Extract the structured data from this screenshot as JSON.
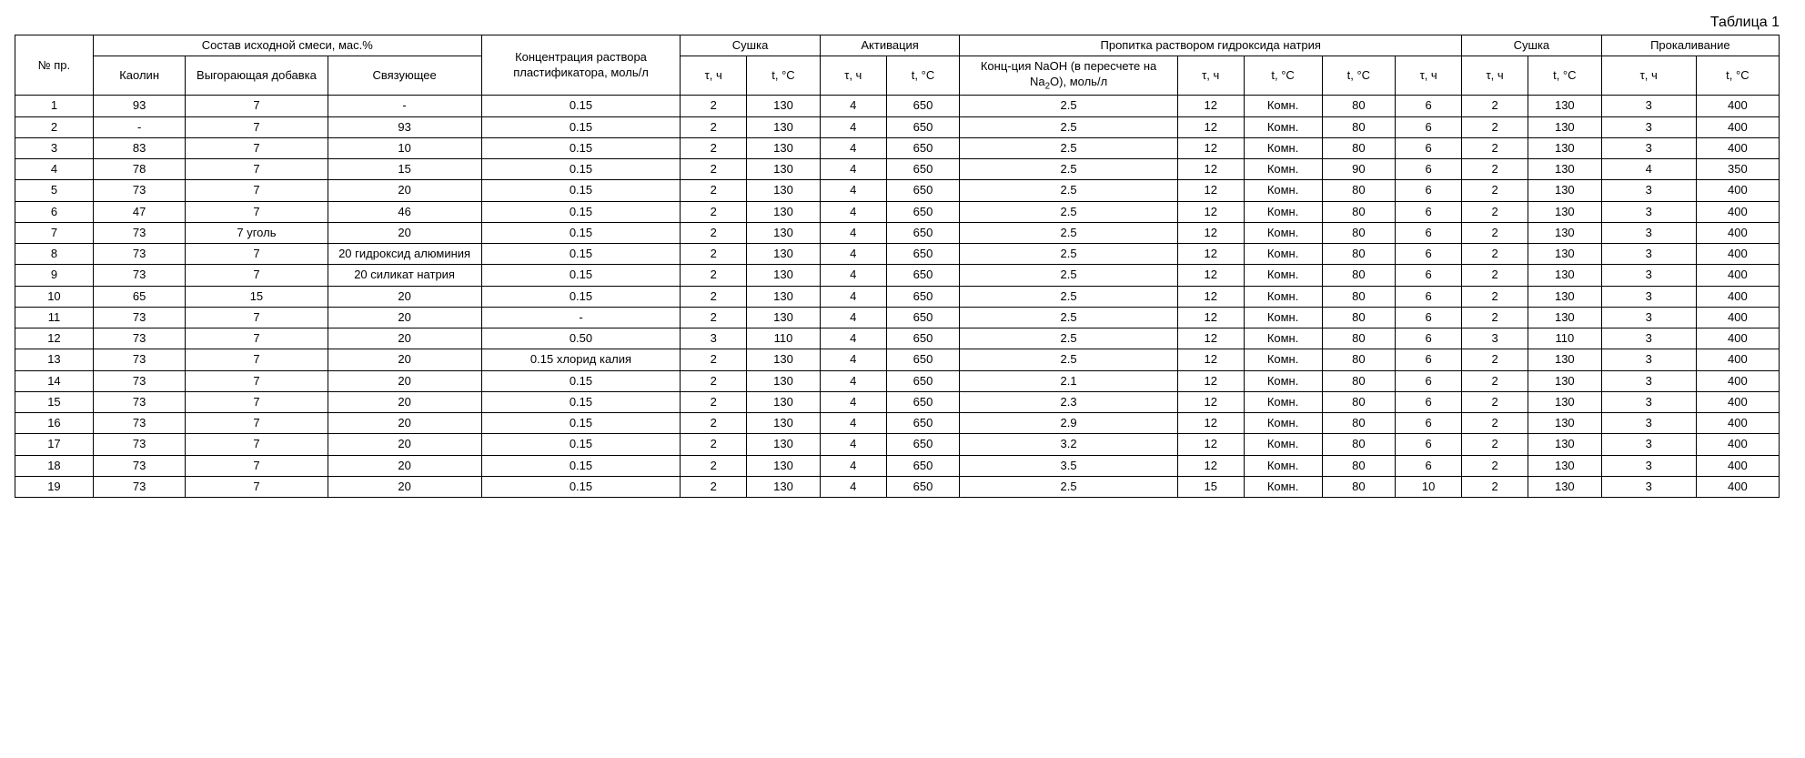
{
  "caption": "Таблица 1",
  "header": {
    "row1": [
      "№ пр.",
      "Состав исходной смеси, мас.%",
      "Концентрация раствора пластификатора, моль/л",
      "Сушка",
      "Активация",
      "Пропитка раствором гидроксида натрия",
      "Сушка",
      "Прокаливание"
    ],
    "row2_comp": [
      "Каолин",
      "Выгорающая добавка",
      "Связующее"
    ],
    "row2_dry1": [
      "τ, ч",
      "t, °C"
    ],
    "row2_act": [
      "τ, ч",
      "t, °C"
    ],
    "row2_imp": [
      "Конц-ция NaOH (в пересчете на Na₂O), моль/л",
      "τ, ч",
      "t, °C",
      "t, °C",
      "τ, ч"
    ],
    "row2_dry2": [
      "τ, ч",
      "t, °C"
    ],
    "row2_calc": [
      "τ, ч",
      "t, °C"
    ]
  },
  "colwidths": {
    "npr": 66,
    "kaolin": 78,
    "burn": 120,
    "binder": 130,
    "conc": 168,
    "d1a": 56,
    "d1b": 62,
    "aa": 56,
    "ab": 62,
    "ia": 184,
    "ib": 56,
    "ic": 66,
    "id": 62,
    "ie": 56,
    "d2a": 56,
    "d2b": 62,
    "ca": 80,
    "cb": 70
  },
  "rows": [
    [
      "1",
      "93",
      "7",
      "-",
      "0.15",
      "2",
      "130",
      "4",
      "650",
      "2.5",
      "12",
      "Комн.",
      "80",
      "6",
      "2",
      "130",
      "3",
      "400"
    ],
    [
      "2",
      "-",
      "7",
      "93",
      "0.15",
      "2",
      "130",
      "4",
      "650",
      "2.5",
      "12",
      "Комн.",
      "80",
      "6",
      "2",
      "130",
      "3",
      "400"
    ],
    [
      "3",
      "83",
      "7",
      "10",
      "0.15",
      "2",
      "130",
      "4",
      "650",
      "2.5",
      "12",
      "Комн.",
      "80",
      "6",
      "2",
      "130",
      "3",
      "400"
    ],
    [
      "4",
      "78",
      "7",
      "15",
      "0.15",
      "2",
      "130",
      "4",
      "650",
      "2.5",
      "12",
      "Комн.",
      "90",
      "6",
      "2",
      "130",
      "4",
      "350"
    ],
    [
      "5",
      "73",
      "7",
      "20",
      "0.15",
      "2",
      "130",
      "4",
      "650",
      "2.5",
      "12",
      "Комн.",
      "80",
      "6",
      "2",
      "130",
      "3",
      "400"
    ],
    [
      "6",
      "47",
      "7",
      "46",
      "0.15",
      "2",
      "130",
      "4",
      "650",
      "2.5",
      "12",
      "Комн.",
      "80",
      "6",
      "2",
      "130",
      "3",
      "400"
    ],
    [
      "7",
      "73",
      "7 уголь",
      "20",
      "0.15",
      "2",
      "130",
      "4",
      "650",
      "2.5",
      "12",
      "Комн.",
      "80",
      "6",
      "2",
      "130",
      "3",
      "400"
    ],
    [
      "8",
      "73",
      "7",
      "20 гидроксид алюминия",
      "0.15",
      "2",
      "130",
      "4",
      "650",
      "2.5",
      "12",
      "Комн.",
      "80",
      "6",
      "2",
      "130",
      "3",
      "400"
    ],
    [
      "9",
      "73",
      "7",
      "20 силикат натрия",
      "0.15",
      "2",
      "130",
      "4",
      "650",
      "2.5",
      "12",
      "Комн.",
      "80",
      "6",
      "2",
      "130",
      "3",
      "400"
    ],
    [
      "10",
      "65",
      "15",
      "20",
      "0.15",
      "2",
      "130",
      "4",
      "650",
      "2.5",
      "12",
      "Комн.",
      "80",
      "6",
      "2",
      "130",
      "3",
      "400"
    ],
    [
      "11",
      "73",
      "7",
      "20",
      "-",
      "2",
      "130",
      "4",
      "650",
      "2.5",
      "12",
      "Комн.",
      "80",
      "6",
      "2",
      "130",
      "3",
      "400"
    ],
    [
      "12",
      "73",
      "7",
      "20",
      "0.50",
      "3",
      "110",
      "4",
      "650",
      "2.5",
      "12",
      "Комн.",
      "80",
      "6",
      "3",
      "110",
      "3",
      "400"
    ],
    [
      "13",
      "73",
      "7",
      "20",
      "0.15 хлорид калия",
      "2",
      "130",
      "4",
      "650",
      "2.5",
      "12",
      "Комн.",
      "80",
      "6",
      "2",
      "130",
      "3",
      "400"
    ],
    [
      "14",
      "73",
      "7",
      "20",
      "0.15",
      "2",
      "130",
      "4",
      "650",
      "2.1",
      "12",
      "Комн.",
      "80",
      "6",
      "2",
      "130",
      "3",
      "400"
    ],
    [
      "15",
      "73",
      "7",
      "20",
      "0.15",
      "2",
      "130",
      "4",
      "650",
      "2.3",
      "12",
      "Комн.",
      "80",
      "6",
      "2",
      "130",
      "3",
      "400"
    ],
    [
      "16",
      "73",
      "7",
      "20",
      "0.15",
      "2",
      "130",
      "4",
      "650",
      "2.9",
      "12",
      "Комн.",
      "80",
      "6",
      "2",
      "130",
      "3",
      "400"
    ],
    [
      "17",
      "73",
      "7",
      "20",
      "0.15",
      "2",
      "130",
      "4",
      "650",
      "3.2",
      "12",
      "Комн.",
      "80",
      "6",
      "2",
      "130",
      "3",
      "400"
    ],
    [
      "18",
      "73",
      "7",
      "20",
      "0.15",
      "2",
      "130",
      "4",
      "650",
      "3.5",
      "12",
      "Комн.",
      "80",
      "6",
      "2",
      "130",
      "3",
      "400"
    ],
    [
      "19",
      "73",
      "7",
      "20",
      "0.15",
      "2",
      "130",
      "4",
      "650",
      "2.5",
      "15",
      "Комн.",
      "80",
      "10",
      "2",
      "130",
      "3",
      "400"
    ]
  ]
}
